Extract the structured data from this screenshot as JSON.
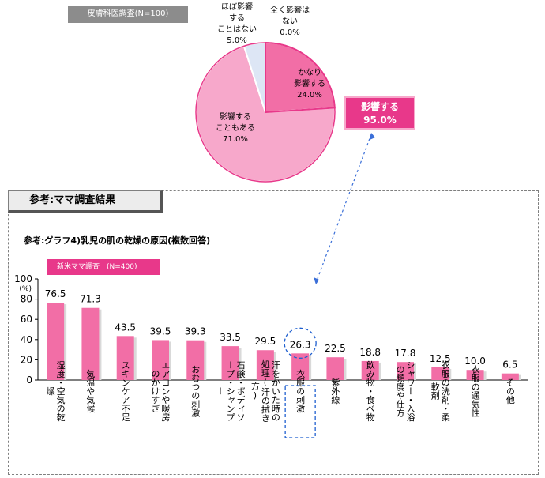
{
  "pie": {
    "label": "皮膚科医調査(N=100)",
    "total_label": "影響する",
    "total_value": "95.0%",
    "colors": {
      "strong": "#f26ea6",
      "some": "#f7a8cb",
      "little": "#dde6f5",
      "none": "#ffffff",
      "edge": "#e8388a"
    },
    "slices": [
      {
        "name": "かなり\n影響する",
        "value": 24.0,
        "value_label": "24.0%",
        "color": "#f26ea6"
      },
      {
        "name": "影響する\nこともある",
        "value": 71.0,
        "value_label": "71.0%",
        "color": "#f7a8cb"
      },
      {
        "name": "ほぼ影響\nする\nことはない",
        "value": 5.0,
        "value_label": "5.0%",
        "color": "#dde6f5"
      },
      {
        "name": "全く影響は\nない",
        "value": 0.0,
        "value_label": "0.0%",
        "color": "#ffffff"
      }
    ]
  },
  "reference": {
    "header": "参考:ママ調査結果",
    "chart_title": "参考:グラフ4)乳児の肌の乾燥の原因(複数回答)",
    "survey_label": "新米ママ調査　(N=400)"
  },
  "chart_data": {
    "type": "bar",
    "ylabel": "(%)",
    "ylim": [
      0,
      100
    ],
    "yticks": [
      0,
      20,
      40,
      60,
      80,
      100
    ],
    "bar_color": "#f26ea6",
    "highlight_color": "#1f5fcf",
    "highlighted_index": 7,
    "categories": [
      "湿度・空気の乾燥",
      "気温や気候",
      "スキンケア不足",
      "エアコンや暖房のかけすぎ",
      "おむつの刺激",
      "石鹸・ボディソープ・シャンプー",
      "汗をかいた時の処理(汗の拭き方)",
      "衣服の刺激",
      "紫外線",
      "飲み物・食べ物",
      "シャワー・入浴の頻度や仕方",
      "衣服の洗剤・柔軟剤",
      "衣服の通気性",
      "その他"
    ],
    "values": [
      76.5,
      71.3,
      43.5,
      39.5,
      39.3,
      33.5,
      29.5,
      26.3,
      22.5,
      18.8,
      17.8,
      12.5,
      10.0,
      6.5
    ],
    "value_labels": [
      "76.5",
      "71.3",
      "43.5",
      "39.5",
      "39.3",
      "33.5",
      "29.5",
      "26.3",
      "22.5",
      "18.8",
      "17.8",
      "12.5",
      "10.0",
      "6.5"
    ]
  }
}
